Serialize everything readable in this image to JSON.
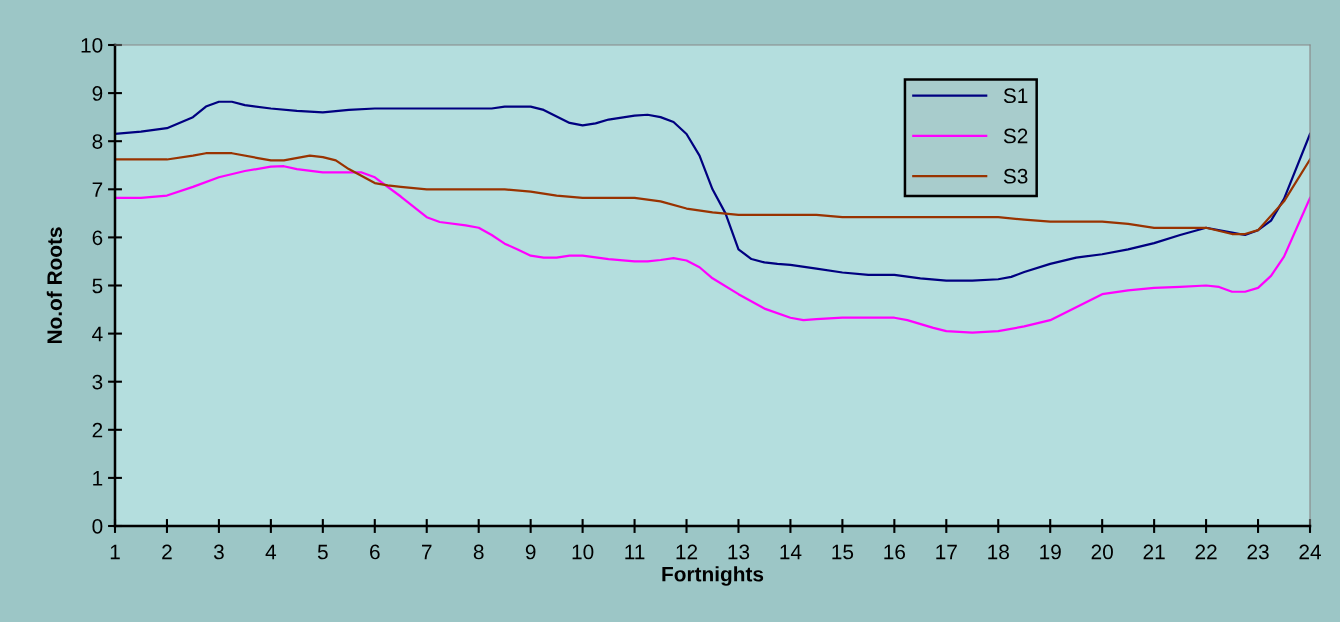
{
  "chart_data": {
    "type": "line",
    "xlabel": "Fortnights",
    "ylabel": "No.of Roots",
    "xlim": [
      1,
      24
    ],
    "xticks": [
      1,
      2,
      3,
      4,
      5,
      6,
      7,
      8,
      9,
      10,
      11,
      12,
      13,
      14,
      15,
      16,
      17,
      18,
      19,
      20,
      21,
      22,
      23,
      24
    ],
    "ylim": [
      0,
      10
    ],
    "yticks": [
      0,
      1,
      2,
      3,
      4,
      5,
      6,
      7,
      8,
      9,
      10
    ],
    "grid": false,
    "legend": "top right",
    "marker": "none",
    "line_style": "solid",
    "series": [
      {
        "name": "S1",
        "color": "#000080",
        "x": [
          1,
          1.5,
          2,
          2.5,
          2.75,
          3,
          3.25,
          3.5,
          4,
          4.5,
          5,
          5.5,
          6,
          6.5,
          7,
          7.5,
          8,
          8.25,
          8.5,
          9,
          9.25,
          9.75,
          10,
          10.25,
          10.5,
          11,
          11.25,
          11.5,
          11.75,
          12,
          12.25,
          12.5,
          12.75,
          13,
          13.25,
          13.5,
          13.75,
          14,
          14.5,
          15,
          15.5,
          16,
          16.5,
          17,
          17.5,
          18,
          18.25,
          18.5,
          19,
          19.5,
          20,
          20.5,
          21,
          21.5,
          22,
          22.5,
          22.75,
          23,
          23.25,
          23.5,
          24
        ],
        "values": [
          8.15,
          8.2,
          8.27,
          8.5,
          8.72,
          8.82,
          8.82,
          8.75,
          8.68,
          8.63,
          8.6,
          8.65,
          8.68,
          8.68,
          8.68,
          8.68,
          8.68,
          8.68,
          8.72,
          8.72,
          8.65,
          8.38,
          8.33,
          8.37,
          8.45,
          8.53,
          8.55,
          8.5,
          8.4,
          8.15,
          7.7,
          7.0,
          6.5,
          5.75,
          5.55,
          5.48,
          5.45,
          5.43,
          5.35,
          5.27,
          5.22,
          5.22,
          5.15,
          5.1,
          5.1,
          5.13,
          5.18,
          5.28,
          5.45,
          5.58,
          5.65,
          5.75,
          5.88,
          6.05,
          6.2,
          6.1,
          6.05,
          6.15,
          6.35,
          6.8,
          8.15
        ]
      },
      {
        "name": "S2",
        "color": "#ff00ff",
        "x": [
          1,
          1.5,
          2,
          2.5,
          3,
          3.5,
          4,
          4.25,
          4.5,
          5,
          5.5,
          5.75,
          6,
          6.5,
          7,
          7.25,
          7.75,
          8,
          8.25,
          8.5,
          8.75,
          9,
          9.25,
          9.5,
          9.75,
          10,
          10.5,
          11,
          11.25,
          11.5,
          11.75,
          12,
          12.25,
          12.5,
          13,
          13.5,
          14,
          14.25,
          14.5,
          15,
          15.5,
          16,
          16.25,
          16.75,
          17,
          17.5,
          18,
          18.5,
          19,
          19.5,
          20,
          20.5,
          21,
          21.5,
          22,
          22.25,
          22.5,
          22.75,
          23,
          23.25,
          23.5,
          24
        ],
        "values": [
          6.82,
          6.82,
          6.87,
          7.05,
          7.25,
          7.38,
          7.47,
          7.48,
          7.42,
          7.35,
          7.35,
          7.35,
          7.25,
          6.85,
          6.42,
          6.32,
          6.25,
          6.2,
          6.05,
          5.87,
          5.75,
          5.62,
          5.58,
          5.58,
          5.62,
          5.62,
          5.55,
          5.5,
          5.5,
          5.53,
          5.57,
          5.52,
          5.38,
          5.15,
          4.82,
          4.52,
          4.33,
          4.28,
          4.3,
          4.33,
          4.33,
          4.33,
          4.28,
          4.12,
          4.05,
          4.02,
          4.05,
          4.15,
          4.28,
          4.55,
          4.82,
          4.9,
          4.95,
          4.97,
          5.0,
          4.97,
          4.87,
          4.87,
          4.95,
          5.2,
          5.6,
          6.82
        ]
      },
      {
        "name": "S3",
        "color": "#993300",
        "x": [
          1,
          1.5,
          2,
          2.5,
          2.75,
          3.25,
          3.75,
          4,
          4.25,
          4.75,
          5,
          5.25,
          5.5,
          6,
          6.25,
          6.5,
          7,
          7.5,
          8,
          8.5,
          9,
          9.5,
          10,
          10.5,
          11,
          11.5,
          12,
          12.5,
          13,
          14,
          14.5,
          15,
          16,
          17,
          18,
          18.5,
          19,
          20,
          20.5,
          21,
          22,
          22.5,
          22.75,
          23,
          23.5,
          24
        ],
        "values": [
          7.62,
          7.62,
          7.62,
          7.7,
          7.75,
          7.75,
          7.65,
          7.6,
          7.6,
          7.7,
          7.67,
          7.6,
          7.42,
          7.13,
          7.08,
          7.05,
          7.0,
          7.0,
          7.0,
          7.0,
          6.95,
          6.87,
          6.82,
          6.82,
          6.82,
          6.75,
          6.6,
          6.52,
          6.47,
          6.47,
          6.47,
          6.42,
          6.42,
          6.42,
          6.42,
          6.37,
          6.33,
          6.33,
          6.28,
          6.2,
          6.2,
          6.07,
          6.07,
          6.15,
          6.75,
          7.62
        ]
      }
    ]
  }
}
